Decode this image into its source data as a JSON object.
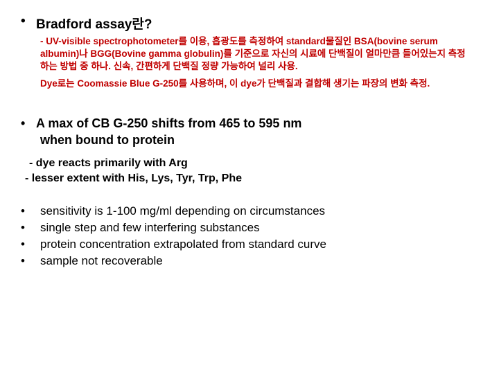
{
  "title": {
    "bullet": "•",
    "text": "Bradford assay란?"
  },
  "red": {
    "p1": "- UV-visible spectrophotometer를 이용, 흡광도를 측정하여 standard물질인 BSA(bovine serum albumin)나 BGG(Bovine gamma globulin)를 기준으로 자신의 시료에 단백질이 얼마만큼 들어있는지 측정하는 방법 중 하나. 신속, 간편하게 단백질 정량 가능하여 널리 사용.",
    "p2": "Dye로는 Coomassie Blue G-250를 사용하며, 이 dye가 단백질과 결합해 생기는 파장의 변화 측정."
  },
  "shift": {
    "bullet": "•",
    "line1": "A max of CB G-250 shifts from 465 to 595 nm",
    "line2": "when bound to protein"
  },
  "dye": {
    "l1": "- dye reacts primarily with Arg",
    "l2": "- lesser extent with His, Lys, Tyr, Trp, Phe"
  },
  "props": {
    "bullet": "•",
    "items": [
      "sensitivity is 1-100 mg/ml depending on circumstances",
      "single step and few interfering substances",
      "protein concentration extrapolated from standard curve",
      "sample not recoverable"
    ]
  }
}
